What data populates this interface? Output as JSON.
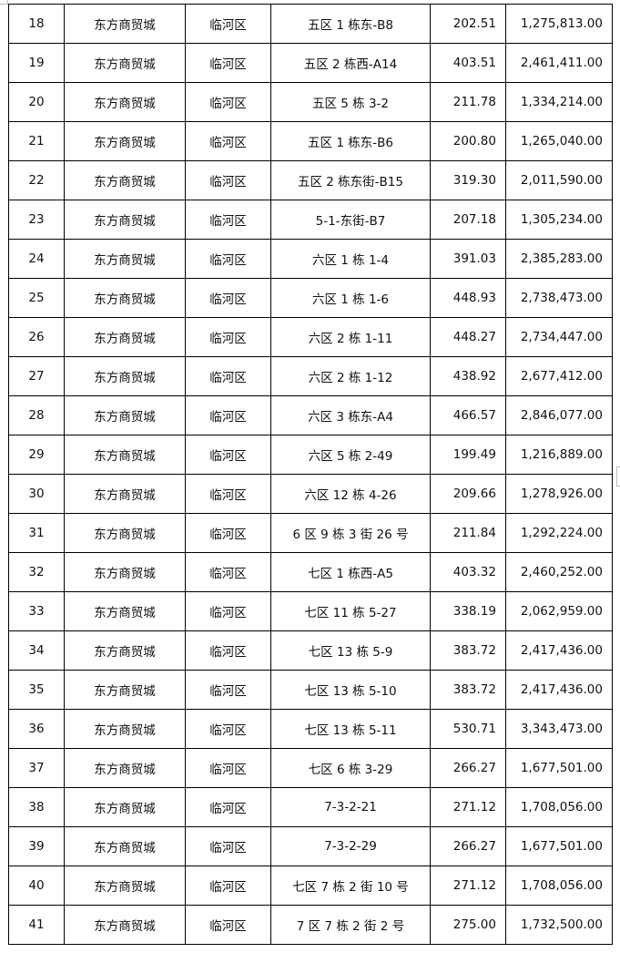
{
  "rows": [
    [
      "18",
      "东方商贸城",
      "临河区",
      "五区 1 栋东-B8",
      "202.51",
      "1,275,813.00"
    ],
    [
      "19",
      "东方商贸城",
      "临河区",
      "五区 2 栋西-A14",
      "403.51",
      "2,461,411.00"
    ],
    [
      "20",
      "东方商贸城",
      "临河区",
      "五区 5 栋 3-2",
      "211.78",
      "1,334,214.00"
    ],
    [
      "21",
      "东方商贸城",
      "临河区",
      "五区 1 栋东-B6",
      "200.80",
      "1,265,040.00"
    ],
    [
      "22",
      "东方商贸城",
      "临河区",
      "五区 2 栋东街-B15",
      "319.30",
      "2,011,590.00"
    ],
    [
      "23",
      "东方商贸城",
      "临河区",
      "5-1-东街-B7",
      "207.18",
      "1,305,234.00"
    ],
    [
      "24",
      "东方商贸城",
      "临河区",
      "六区 1 栋 1-4",
      "391.03",
      "2,385,283.00"
    ],
    [
      "25",
      "东方商贸城",
      "临河区",
      "六区 1 栋 1-6",
      "448.93",
      "2,738,473.00"
    ],
    [
      "26",
      "东方商贸城",
      "临河区",
      "六区 2 栋 1-11",
      "448.27",
      "2,734,447.00"
    ],
    [
      "27",
      "东方商贸城",
      "临河区",
      "六区 2 栋 1-12",
      "438.92",
      "2,677,412.00"
    ],
    [
      "28",
      "东方商贸城",
      "临河区",
      "六区 3 栋东-A4",
      "466.57",
      "2,846,077.00"
    ],
    [
      "29",
      "东方商贸城",
      "临河区",
      "六区 5 栋 2-49",
      "199.49",
      "1,216,889.00"
    ],
    [
      "30",
      "东方商贸城",
      "临河区",
      "六区 12 栋 4-26",
      "209.66",
      "1,278,926.00"
    ],
    [
      "31",
      "东方商贸城",
      "临河区",
      "6 区 9 栋 3 街 26 号",
      "211.84",
      "1,292,224.00"
    ],
    [
      "32",
      "东方商贸城",
      "临河区",
      "七区 1 栋西-A5",
      "403.32",
      "2,460,252.00"
    ],
    [
      "33",
      "东方商贸城",
      "临河区",
      "七区 11 栋 5-27",
      "338.19",
      "2,062,959.00"
    ],
    [
      "34",
      "东方商贸城",
      "临河区",
      "七区 13 栋 5-9",
      "383.72",
      "2,417,436.00"
    ],
    [
      "35",
      "东方商贸城",
      "临河区",
      "七区 13 栋 5-10",
      "383.72",
      "2,417,436.00"
    ],
    [
      "36",
      "东方商贸城",
      "临河区",
      "七区 13 栋 5-11",
      "530.71",
      "3,343,473.00"
    ],
    [
      "37",
      "东方商贸城",
      "临河区",
      "七区 6 栋 3-29",
      "266.27",
      "1,677,501.00"
    ],
    [
      "38",
      "东方商贸城",
      "临河区",
      "7-3-2-21",
      "271.12",
      "1,708,056.00"
    ],
    [
      "39",
      "东方商贸城",
      "临河区",
      "7-3-2-29",
      "266.27",
      "1,677,501.00"
    ],
    [
      "40",
      "东方商贸城",
      "临河区",
      "七区 7 栋 2 街 10 号",
      "271.12",
      "1,708,056.00"
    ],
    [
      "41",
      "东方商贸城",
      "临河区",
      "7 区 7 栋 2 街 2 号",
      "275.00",
      "1,732,500.00"
    ]
  ]
}
